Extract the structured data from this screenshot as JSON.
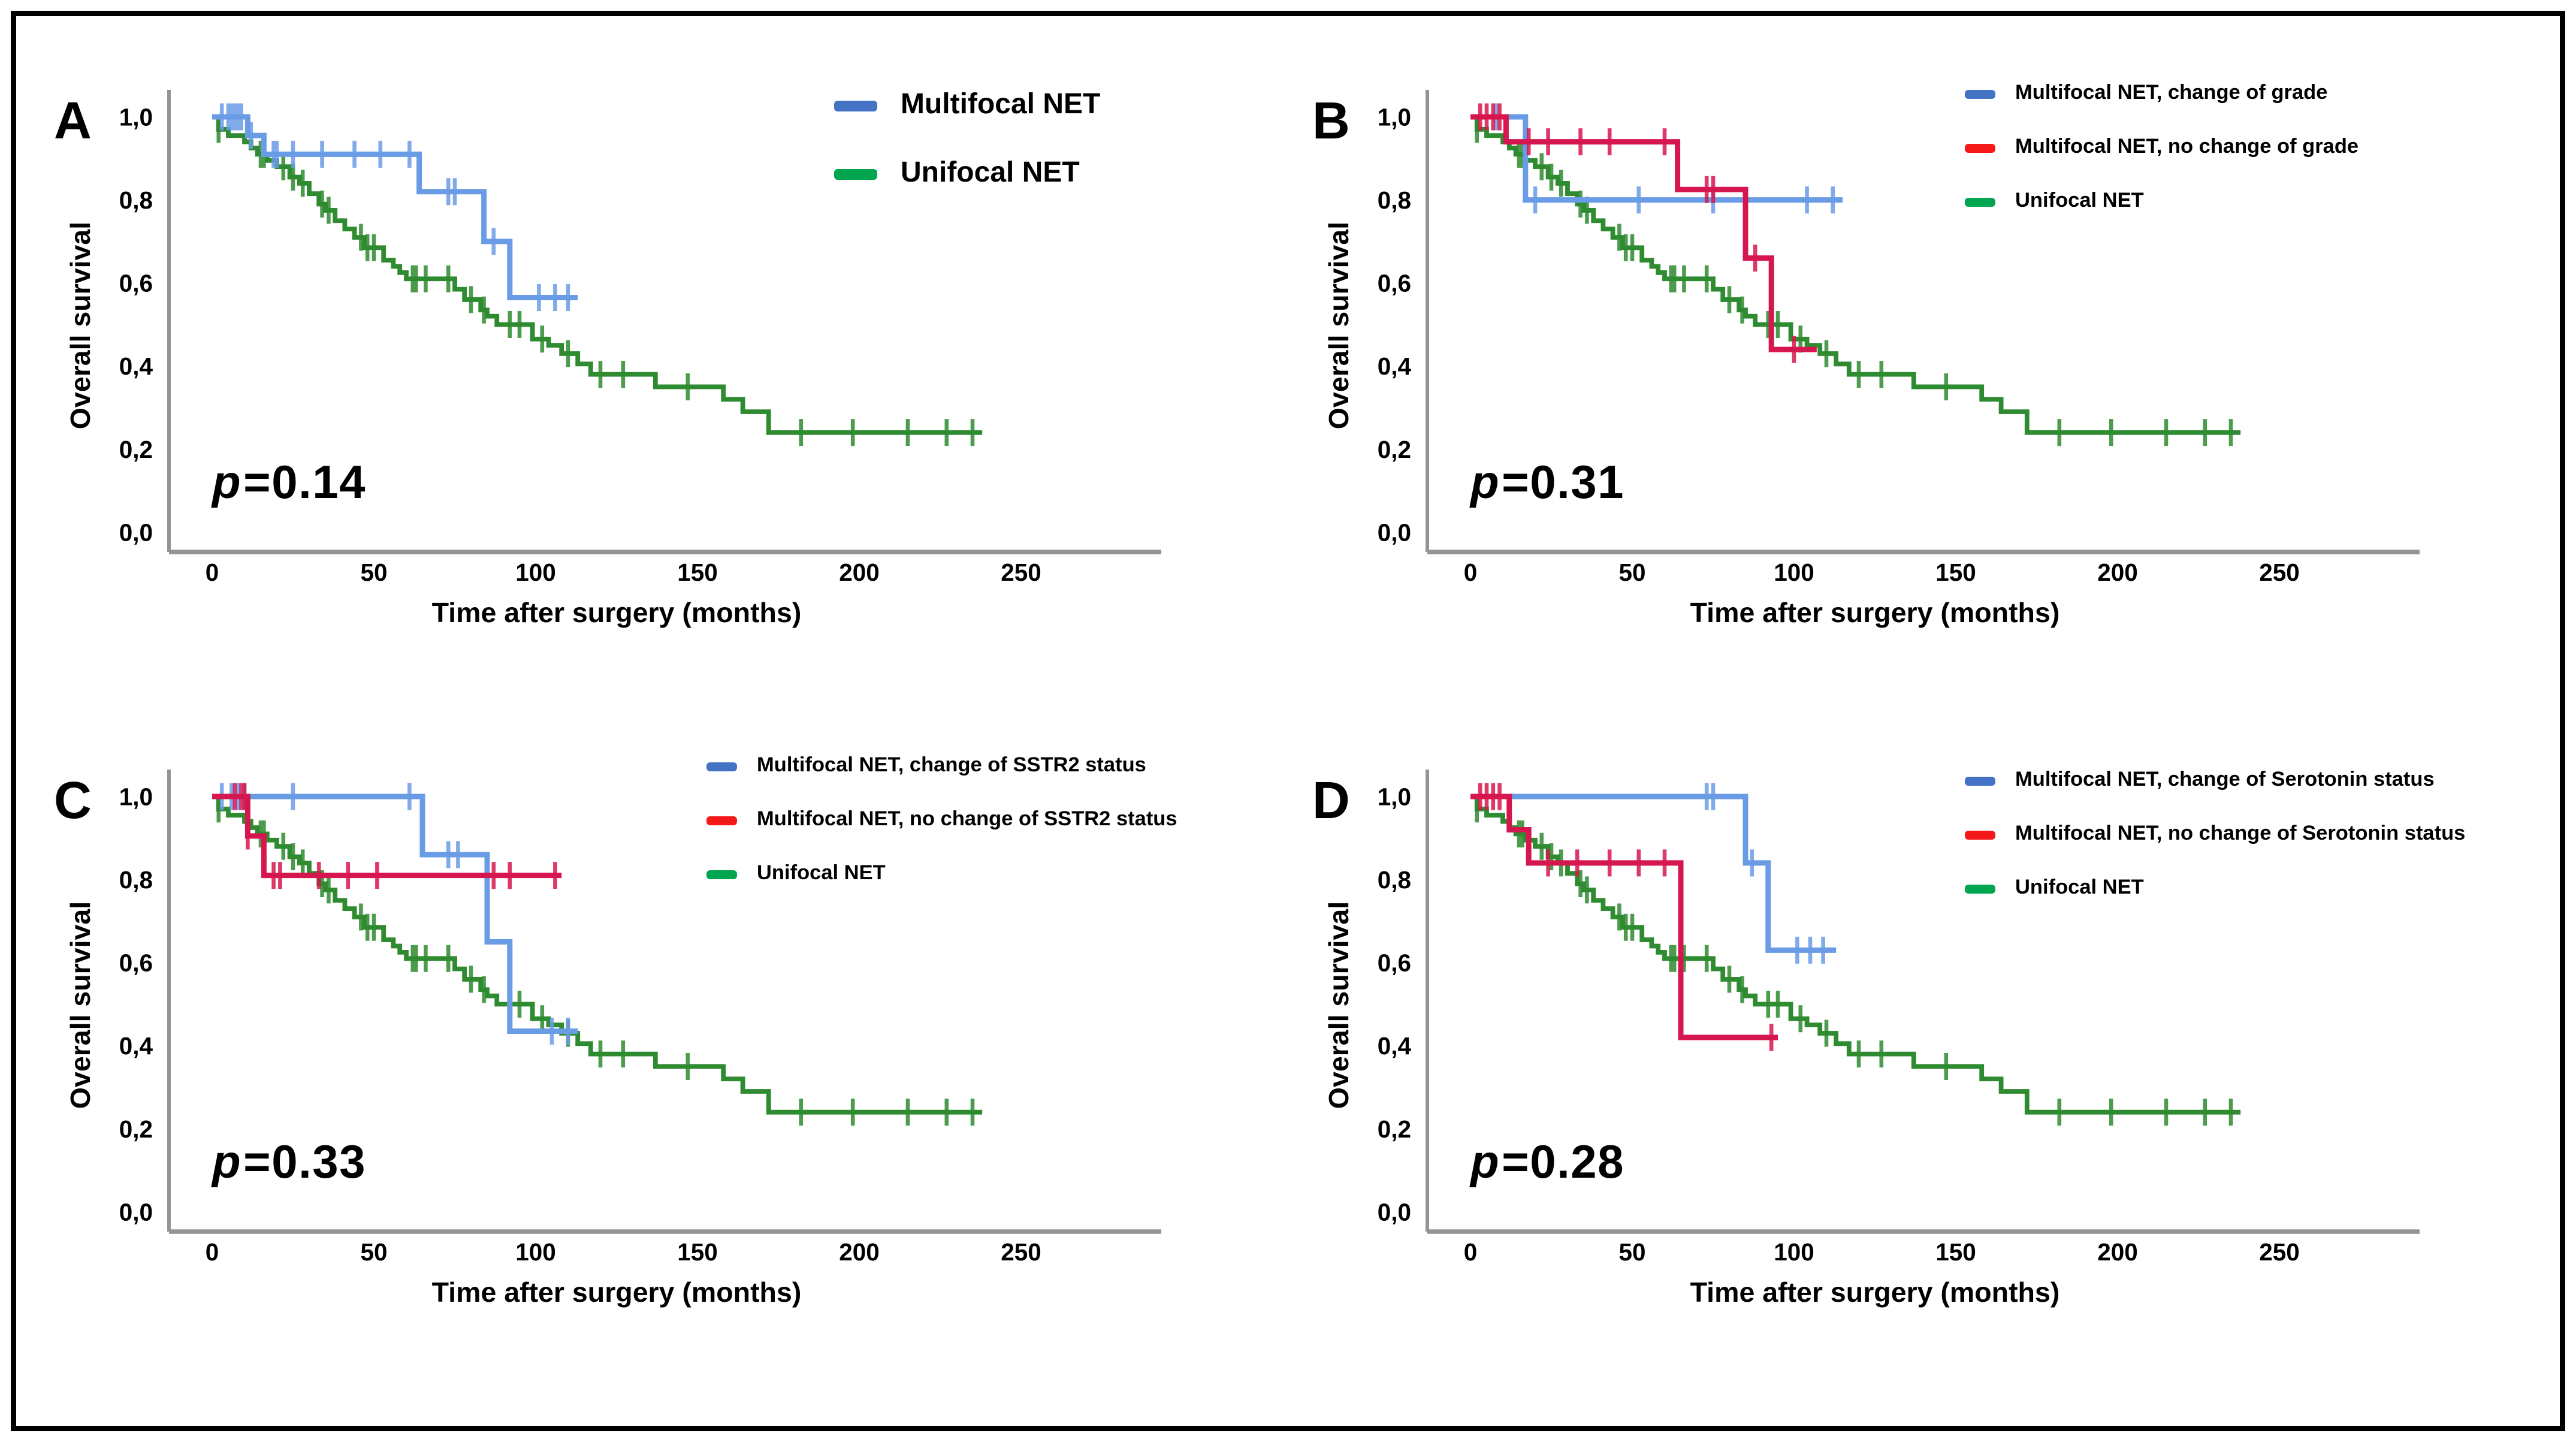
{
  "figure": {
    "background": "#ffffff",
    "border_color": "#000000"
  },
  "colors": {
    "curve_blue": "#6a9ce6",
    "curve_green": "#2e8b30",
    "curve_red": "#d6164e",
    "legend_blue": "#4472c4",
    "legend_red": "#f51818",
    "legend_green": "#00a550",
    "axis_line": "#949494",
    "text": "#000000"
  },
  "chart_data": {
    "type": "line",
    "subtype": "kaplan-meier-step",
    "grid": "off",
    "x_axis": {
      "label": "Time after surgery (months)",
      "ticks": [
        0,
        50,
        100,
        150,
        200,
        250
      ],
      "range": [
        0,
        265
      ]
    },
    "y_axis": {
      "label": "Overall survival",
      "ticks": [
        {
          "v": 1.0,
          "label": "1,0"
        },
        {
          "v": 0.8,
          "label": "0,8"
        },
        {
          "v": 0.6,
          "label": "0,6"
        },
        {
          "v": 0.4,
          "label": "0,4"
        },
        {
          "v": 0.2,
          "label": "0,2"
        },
        {
          "v": 0.0,
          "label": "0,0"
        }
      ],
      "range": [
        0,
        1
      ]
    },
    "shared_series": {
      "unifocal": {
        "name": "Unifocal NET",
        "color_key": "curve_green",
        "steps": [
          [
            0,
            1.0
          ],
          [
            2,
            0.97
          ],
          [
            5,
            0.955
          ],
          [
            10,
            0.94
          ],
          [
            12,
            0.925
          ],
          [
            14,
            0.91
          ],
          [
            17,
            0.895
          ],
          [
            20,
            0.88
          ],
          [
            24,
            0.855
          ],
          [
            27,
            0.84
          ],
          [
            30,
            0.815
          ],
          [
            33,
            0.79
          ],
          [
            35,
            0.775
          ],
          [
            38,
            0.75
          ],
          [
            41,
            0.73
          ],
          [
            44,
            0.71
          ],
          [
            47,
            0.685
          ],
          [
            53,
            0.655
          ],
          [
            56,
            0.64
          ],
          [
            58,
            0.625
          ],
          [
            60,
            0.61
          ],
          [
            75,
            0.585
          ],
          [
            78,
            0.56
          ],
          [
            83,
            0.535
          ],
          [
            85,
            0.52
          ],
          [
            88,
            0.5
          ],
          [
            99,
            0.465
          ],
          [
            104,
            0.45
          ],
          [
            108,
            0.43
          ],
          [
            113,
            0.405
          ],
          [
            117,
            0.38
          ],
          [
            137,
            0.35
          ],
          [
            158,
            0.32
          ],
          [
            164,
            0.29
          ],
          [
            172,
            0.24
          ]
        ],
        "censors": [
          2,
          15,
          16,
          22,
          25,
          28,
          34,
          36,
          46,
          48,
          50,
          62,
          63,
          66,
          73,
          80,
          84,
          92,
          95,
          102,
          110,
          120,
          127,
          147,
          182,
          198,
          215,
          227,
          235
        ],
        "end": 238
      }
    },
    "panels": [
      {
        "label": "A",
        "p_symbol": "p",
        "p_text": "=0.14",
        "legend_size": "large",
        "legend": [
          {
            "label": "Multifocal NET",
            "color_key": "legend_blue"
          },
          {
            "label": "Unifocal NET",
            "color_key": "legend_green"
          }
        ],
        "series": [
          {
            "ref": "unifocal"
          },
          {
            "name": "Multifocal NET",
            "color_key": "curve_blue",
            "steps": [
              [
                0,
                1.0
              ],
              [
                11,
                0.955
              ],
              [
                16,
                0.91
              ],
              [
                64,
                0.82
              ],
              [
                84,
                0.7
              ],
              [
                92,
                0.565
              ]
            ],
            "censors": [
              3,
              5,
              6,
              7,
              8,
              9,
              12,
              19,
              20,
              25,
              34,
              44,
              52,
              61,
              73,
              75,
              87,
              101,
              106,
              110
            ],
            "end": 113
          }
        ]
      },
      {
        "label": "B",
        "p_symbol": "p",
        "p_text": "=0.31",
        "legend_size": "small",
        "legend": [
          {
            "label": "Multifocal NET, change of grade",
            "color_key": "legend_blue"
          },
          {
            "label": "Multifocal NET, no change of grade",
            "color_key": "legend_red"
          },
          {
            "label": "Unifocal NET",
            "color_key": "legend_green"
          }
        ],
        "series": [
          {
            "ref": "unifocal"
          },
          {
            "name": "Multifocal NET, change of grade",
            "color_key": "curve_blue",
            "steps": [
              [
                0,
                1.0
              ],
              [
                17,
                0.8
              ]
            ],
            "censors": [
              8,
              20,
              52,
              75,
              104,
              112
            ],
            "end": 115
          },
          {
            "name": "Multifocal NET, no change of grade",
            "color_key": "curve_red",
            "steps": [
              [
                0,
                1.0
              ],
              [
                11,
                0.94
              ],
              [
                64,
                0.825
              ],
              [
                85,
                0.66
              ],
              [
                93,
                0.44
              ]
            ],
            "censors": [
              3,
              5,
              7,
              9,
              18,
              24,
              34,
              43,
              60,
              73,
              75,
              88,
              100
            ],
            "end": 107
          }
        ]
      },
      {
        "label": "C",
        "p_symbol": "p",
        "p_text": "=0.33",
        "legend_size": "small",
        "legend": [
          {
            "label": "Multifocal NET, change of SSTR2 status",
            "color_key": "legend_blue"
          },
          {
            "label": "Multifocal NET, no change of SSTR2 status",
            "color_key": "legend_red"
          },
          {
            "label": "Unifocal NET",
            "color_key": "legend_green"
          }
        ],
        "series": [
          {
            "ref": "unifocal"
          },
          {
            "name": "Multifocal NET, change of SSTR2 status",
            "color_key": "curve_blue",
            "steps": [
              [
                0,
                1.0
              ],
              [
                65,
                0.86
              ],
              [
                85,
                0.65
              ],
              [
                92,
                0.435
              ]
            ],
            "censors": [
              3,
              6,
              8,
              10,
              25,
              61,
              73,
              76,
              105,
              110
            ],
            "end": 113
          },
          {
            "name": "Multifocal NET, no change of SSTR2 status",
            "color_key": "curve_red",
            "steps": [
              [
                0,
                1.0
              ],
              [
                11,
                0.905
              ],
              [
                16,
                0.81
              ]
            ],
            "censors": [
              7,
              9,
              10,
              11,
              19,
              21,
              33,
              42,
              51,
              87,
              92,
              106
            ],
            "end": 108
          }
        ]
      },
      {
        "label": "D",
        "p_symbol": "p",
        "p_text": "=0.28",
        "legend_size": "small",
        "legend": [
          {
            "label": "Multifocal NET, change of Serotonin status",
            "color_key": "legend_blue"
          },
          {
            "label": "Multifocal NET, no change of Serotonin status",
            "color_key": "legend_red"
          },
          {
            "label": "Unifocal NET",
            "color_key": "legend_green"
          }
        ],
        "series": [
          {
            "ref": "unifocal"
          },
          {
            "name": "Multifocal NET, change of Serotonin status",
            "color_key": "curve_blue",
            "steps": [
              [
                0,
                1.0
              ],
              [
                85,
                0.84
              ],
              [
                92,
                0.63
              ]
            ],
            "censors": [
              73,
              75,
              87,
              101,
              105,
              109
            ],
            "end": 113
          },
          {
            "name": "Multifocal NET, no change of Serotonin status",
            "color_key": "curve_red",
            "steps": [
              [
                0,
                1.0
              ],
              [
                12,
                0.92
              ],
              [
                18,
                0.84
              ],
              [
                65,
                0.42
              ]
            ],
            "censors": [
              3,
              5,
              7,
              9,
              24,
              33,
              43,
              52,
              60,
              93
            ],
            "end": 95
          }
        ]
      }
    ]
  }
}
